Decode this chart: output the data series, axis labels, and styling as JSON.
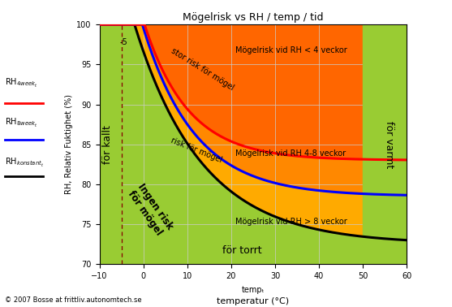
{
  "title": "Mögelrisk vs RH / temp / tid",
  "xlabel_top": "tempₜ",
  "xlabel_bottom": "temperatur (°C)",
  "ylabel": "RH, Relativ Fuktighet (%)",
  "xlim": [
    -10,
    60
  ],
  "ylim": [
    70,
    100
  ],
  "xticks": [
    -10,
    0,
    10,
    20,
    30,
    40,
    50,
    60
  ],
  "yticks": [
    70,
    75,
    80,
    85,
    90,
    95,
    100
  ],
  "bg_green": "#99cc33",
  "color_orange_light": "#ffaa00",
  "color_orange_mid": "#ff8800",
  "color_orange_dark": "#ff6600",
  "dashed_line_x": -5,
  "hot_region_x": 50,
  "copyright": "© 2007 Bosse at frittliv.autonomtech.se",
  "text_stor_risk": "stor risk för mögel",
  "text_risk": "risk för mögel",
  "text_ingen": "Ingen risk\nför mögel",
  "text_torrt": "för torrt",
  "text_kallt": "för kallt",
  "text_varmt": "för varmt",
  "label_4w": "Mögelrisk vid RH < 4 veckor",
  "label_8w": "Mögelrisk vid RH 4-8 veckor",
  "label_8wp": "Mögelrisk vid RH > 8 veckor",
  "legend_rh4": "RH",
  "legend_sub4": "4week",
  "legend_rh8": "RH",
  "legend_sub8": "8week",
  "legend_rhk": "RH",
  "legend_subk": "konstant"
}
